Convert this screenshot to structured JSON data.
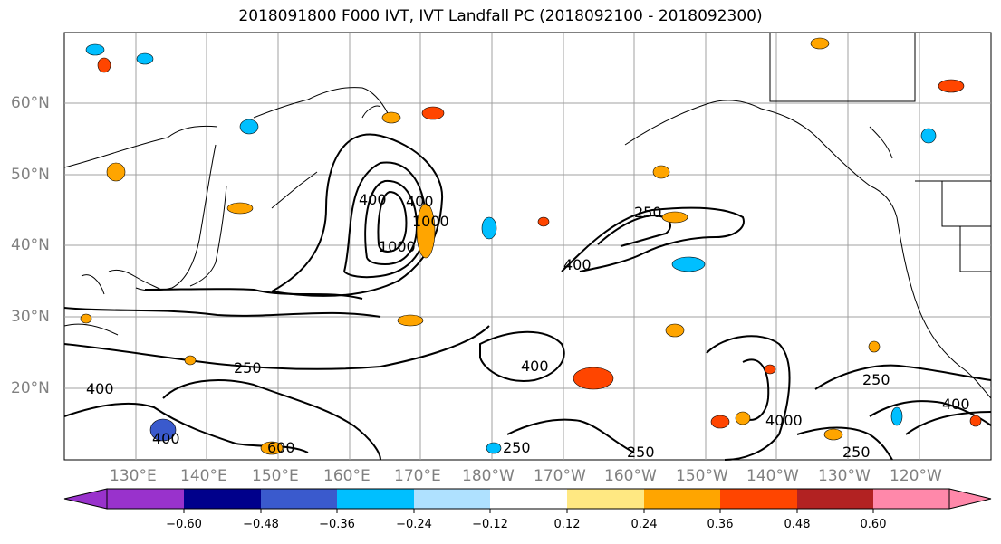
{
  "title": "2018091800 F000 IVT, IVT Landfall PC (2018092100 - 2018092300)",
  "latitude_labels": [
    "60°N",
    "50°N",
    "40°N",
    "30°N",
    "20°N"
  ],
  "longitude_labels": [
    "130°E",
    "140°E",
    "150°E",
    "160°E",
    "170°E",
    "180°W",
    "170°W",
    "160°W",
    "150°W",
    "140°W",
    "130°W",
    "120°W"
  ],
  "contour_labels": [
    "250",
    "400",
    "1000",
    "1000",
    "400",
    "400",
    "250",
    "400",
    "400",
    "4000",
    "250",
    "400",
    "250",
    "600",
    "250",
    "250",
    "400"
  ],
  "colorbar": {
    "ticks": [
      "−0.60",
      "−0.48",
      "−0.36",
      "−0.24",
      "−0.12",
      "0.12",
      "0.24",
      "0.36",
      "0.48",
      "0.60"
    ],
    "colors": [
      "#9932cc",
      "#00008b",
      "#3a5acd",
      "#00bfff",
      "#afe1ff",
      "#ffffff",
      "#ffe882",
      "#ffa500",
      "#ff4500",
      "#b22222",
      "#ff88aa"
    ]
  }
}
